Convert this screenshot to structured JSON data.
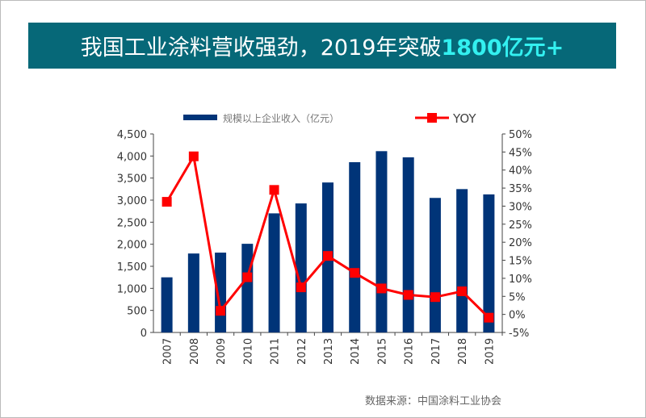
{
  "title": {
    "main": "我国工业涂料营收强劲，2019年突破",
    "highlight": "1800亿元+"
  },
  "source": "数据来源：中国涂料工业协会",
  "chart_data": {
    "type": "bar+line",
    "categories": [
      "2007",
      "2008",
      "2009",
      "2010",
      "2011",
      "2012",
      "2013",
      "2014",
      "2015",
      "2016",
      "2017",
      "2018",
      "2019"
    ],
    "series": [
      {
        "name": "规模以上企业收入（亿元）",
        "type": "bar",
        "axis": "left",
        "color": "#003478",
        "values": [
          1250,
          1790,
          1810,
          2010,
          2700,
          2925,
          3400,
          3860,
          4110,
          3970,
          3050,
          3250,
          3130
        ]
      },
      {
        "name": "YOY",
        "type": "line",
        "axis": "right",
        "color": "#ff0000",
        "values": [
          31.2,
          43.8,
          1.0,
          10.3,
          34.5,
          7.5,
          16.2,
          11.5,
          7.2,
          5.4,
          4.8,
          6.4,
          -0.9
        ]
      }
    ],
    "left_axis": {
      "min": 0,
      "max": 4500,
      "ticks": [
        "0",
        "500",
        "1,000",
        "1,500",
        "2,000",
        "2,500",
        "3,000",
        "3,500",
        "4,000",
        "4,500"
      ]
    },
    "right_axis": {
      "min": -5,
      "max": 50,
      "ticks": [
        "-5%",
        "0%",
        "5%",
        "10%",
        "15%",
        "20%",
        "25%",
        "30%",
        "35%",
        "40%",
        "45%",
        "50%"
      ]
    },
    "legend": "top",
    "grid": false
  }
}
